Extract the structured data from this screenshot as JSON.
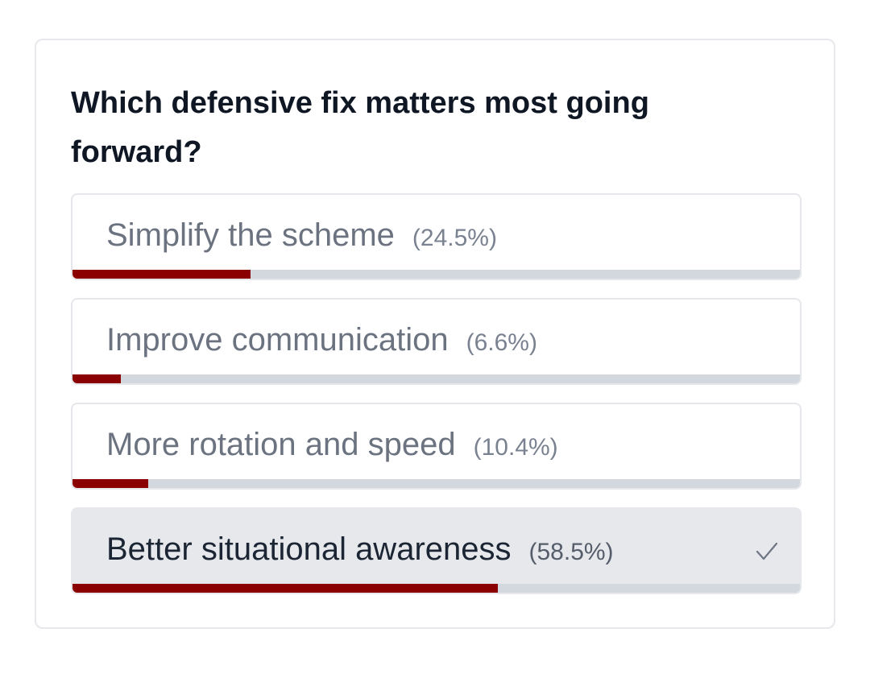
{
  "poll": {
    "question": "Which defensive fix matters most going forward?",
    "bar_color": "#8b0000",
    "track_color": "#d3d8de",
    "options": [
      {
        "label": "Simplify the scheme",
        "percent_text": "(24.5%)",
        "percent": 24.5,
        "selected": false
      },
      {
        "label": "Improve communication",
        "percent_text": "(6.6%)",
        "percent": 6.6,
        "selected": false
      },
      {
        "label": "More rotation and speed",
        "percent_text": "(10.4%)",
        "percent": 10.4,
        "selected": false
      },
      {
        "label": "Better situational awareness",
        "percent_text": "(58.5%)",
        "percent": 58.5,
        "selected": true
      }
    ],
    "selected_icon": "checkmark-icon"
  }
}
